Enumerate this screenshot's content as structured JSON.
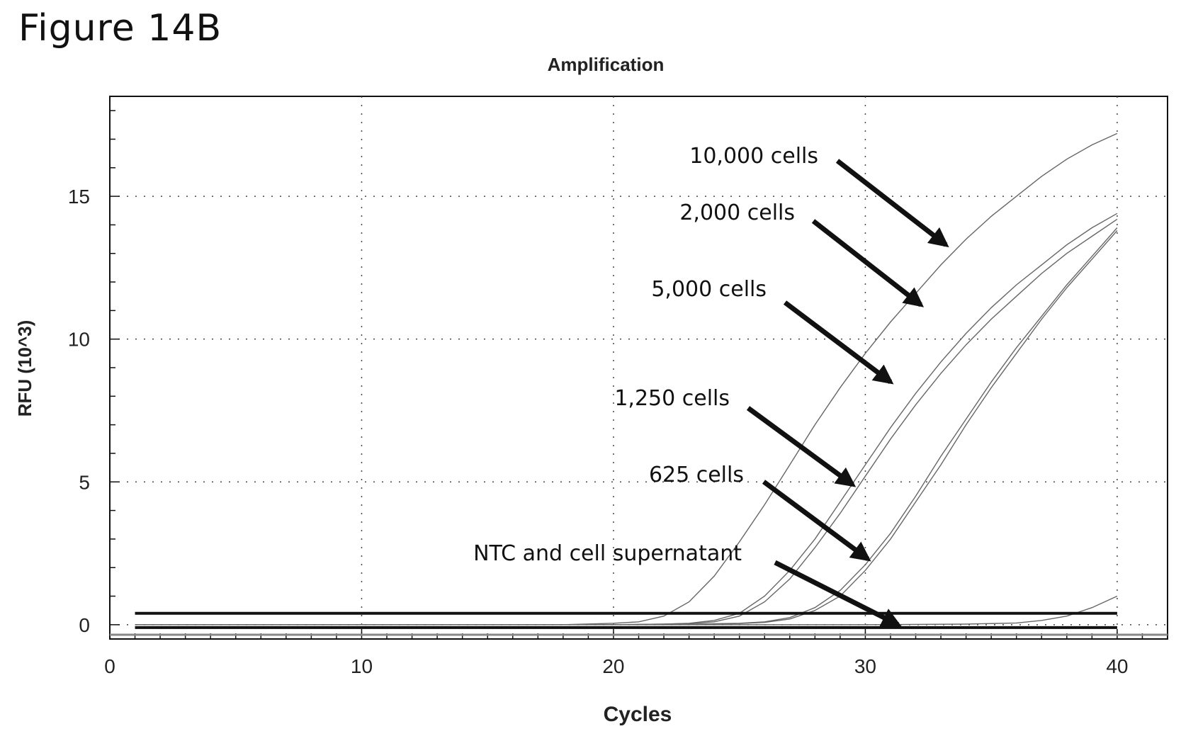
{
  "figure_label": "Figure 14B",
  "chart_data": {
    "type": "line",
    "title": "Amplification",
    "xlabel": "Cycles",
    "ylabel": "RFU (10^3)",
    "xlim": [
      0,
      42
    ],
    "ylim": [
      -0.5,
      18.5
    ],
    "x_ticks": [
      0,
      10,
      20,
      30,
      40
    ],
    "y_ticks": [
      0,
      5,
      10,
      15
    ],
    "grid": true,
    "threshold_lines": [
      -0.1,
      0.4
    ],
    "series": [
      {
        "x": [
          1,
          18,
          20,
          21,
          22,
          23,
          24,
          25,
          26,
          27,
          28,
          29,
          30,
          31,
          32,
          33,
          34,
          35,
          36,
          37,
          38,
          39,
          40
        ],
        "y": [
          0,
          0,
          0.05,
          0.1,
          0.3,
          0.8,
          1.7,
          2.9,
          4.2,
          5.6,
          7.0,
          8.3,
          9.5,
          10.6,
          11.6,
          12.6,
          13.5,
          14.3,
          15.0,
          15.7,
          16.3,
          16.8,
          17.2
        ]
      },
      {
        "x": [
          1,
          20,
          22,
          23,
          24,
          25,
          26,
          27,
          28,
          29,
          30,
          31,
          32,
          33,
          34,
          35,
          36,
          37,
          38,
          39,
          40
        ],
        "y": [
          0,
          0,
          0.02,
          0.05,
          0.15,
          0.4,
          1.0,
          1.9,
          3.0,
          4.3,
          5.6,
          6.9,
          8.1,
          9.2,
          10.2,
          11.1,
          11.9,
          12.6,
          13.3,
          13.9,
          14.4
        ]
      },
      {
        "x": [
          1,
          20,
          22,
          23,
          24,
          25,
          26,
          27,
          28,
          29,
          30,
          31,
          32,
          33,
          34,
          35,
          36,
          37,
          38,
          39,
          40
        ],
        "y": [
          0,
          0,
          0.02,
          0.04,
          0.1,
          0.3,
          0.8,
          1.6,
          2.7,
          3.9,
          5.2,
          6.5,
          7.7,
          8.8,
          9.8,
          10.7,
          11.5,
          12.3,
          13.0,
          13.6,
          14.2
        ]
      },
      {
        "x": [
          1,
          22,
          25,
          26,
          27,
          28,
          29,
          30,
          31,
          32,
          33,
          34,
          35,
          36,
          37,
          38,
          39,
          40
        ],
        "y": [
          0,
          0,
          0.05,
          0.1,
          0.25,
          0.6,
          1.2,
          2.1,
          3.2,
          4.5,
          5.9,
          7.2,
          8.5,
          9.7,
          10.8,
          11.9,
          12.9,
          13.9
        ]
      },
      {
        "x": [
          1,
          22,
          25,
          26,
          27,
          28,
          29,
          30,
          31,
          32,
          33,
          34,
          35,
          36,
          37,
          38,
          39,
          40
        ],
        "y": [
          0,
          0,
          0.04,
          0.08,
          0.2,
          0.5,
          1.0,
          1.9,
          3.0,
          4.3,
          5.6,
          7.0,
          8.3,
          9.5,
          10.7,
          11.8,
          12.8,
          13.8
        ]
      },
      {
        "x": [
          1,
          30,
          34,
          36,
          37,
          38,
          39,
          40
        ],
        "y": [
          0,
          0,
          0.02,
          0.06,
          0.15,
          0.3,
          0.6,
          1.0
        ]
      }
    ],
    "annotations": [
      {
        "text": "10,000 cells",
        "arrow_to": [
          33.2,
          13.3
        ]
      },
      {
        "text": "2,000 cells",
        "arrow_to": [
          32.2,
          11.2
        ]
      },
      {
        "text": "5,000 cells",
        "arrow_to": [
          31.0,
          8.5
        ]
      },
      {
        "text": "1,250 cells",
        "arrow_to": [
          29.5,
          4.9
        ]
      },
      {
        "text": "625 cells",
        "arrow_to": [
          30.1,
          2.3
        ]
      },
      {
        "text": "NTC and cell supernatant",
        "arrow_to": [
          31.3,
          0.0
        ]
      }
    ]
  }
}
